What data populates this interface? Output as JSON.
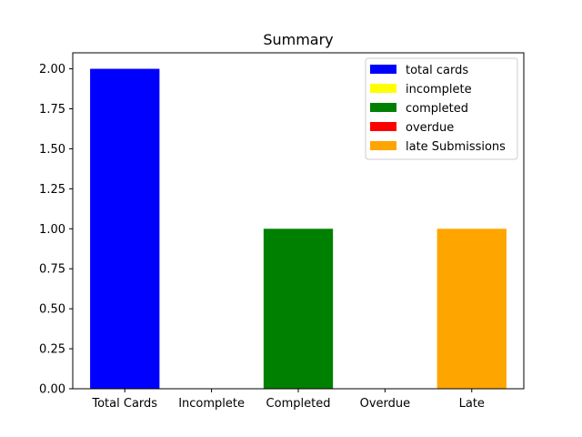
{
  "chart_data": {
    "type": "bar",
    "title": "Summary",
    "xlabel": "",
    "ylabel": "",
    "categories": [
      "Total Cards",
      "Incomplete",
      "Completed",
      "Overdue",
      "Late"
    ],
    "values": [
      2,
      0,
      1,
      0,
      1
    ],
    "colors": [
      "#0000ff",
      "#ffff00",
      "#008000",
      "#ff0000",
      "#ffa500"
    ],
    "legend": [
      "total cards",
      "incomplete",
      "completed",
      "overdue",
      "late Submissions"
    ],
    "legend_position": "upper-right",
    "ylim": [
      0,
      2.1
    ],
    "yticks": [
      "0.00",
      "0.25",
      "0.50",
      "0.75",
      "1.00",
      "1.25",
      "1.50",
      "1.75",
      "2.00"
    ],
    "grid": false
  }
}
